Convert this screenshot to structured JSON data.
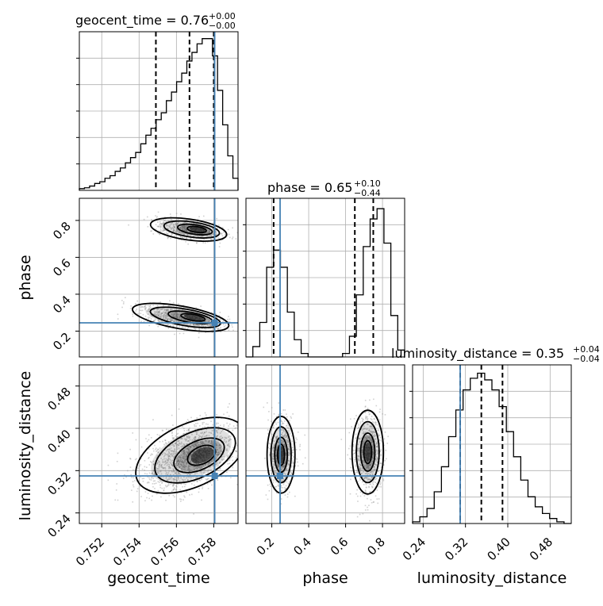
{
  "colors": {
    "truth": "#4682b4",
    "hist": "#000000",
    "grid": "#b0b0b0"
  },
  "titles": {
    "geocent": {
      "base": "geocent_time = 0.76",
      "sup": "+0.00",
      "sub": "−0.00"
    },
    "phase": {
      "base": "phase = 0.65",
      "sup": "+0.10",
      "sub": "−0.44"
    },
    "lumdist": {
      "base": "luminosity_distance = 0.35",
      "sup": "+0.04",
      "sub": "−0.04"
    }
  },
  "labels": {
    "x_geocent": "geocent_time",
    "x_phase": "phase",
    "x_lumdist": "luminosity_distance",
    "y_phase": "phase",
    "y_lumdist": "luminosity_distance"
  },
  "chart_data": {
    "type": "corner",
    "parameters": [
      "geocent_time",
      "phase",
      "luminosity_distance"
    ],
    "truths": {
      "geocent_time": 0.75805,
      "phase": 0.245,
      "luminosity_distance": 0.31
    },
    "quantile_lines": {
      "geocent_time": [
        0.7549,
        0.7567,
        0.758
      ],
      "phase": [
        0.21,
        0.65,
        0.75
      ],
      "luminosity_distance": [
        0.31,
        0.35,
        0.39
      ]
    },
    "ranges": {
      "geocent_time": [
        0.7508,
        0.7593
      ],
      "phase": [
        0.06,
        0.92
      ],
      "luminosity_distance": [
        0.22,
        0.52
      ]
    },
    "ticks": {
      "geocent_time": [
        "0.752",
        "0.754",
        "0.756",
        "0.758"
      ],
      "phase": [
        "0.2",
        "0.4",
        "0.6",
        "0.8"
      ],
      "luminosity_distance": [
        "0.24",
        "0.32",
        "0.40",
        "0.48"
      ]
    },
    "histograms": {
      "geocent_time": {
        "counts": [
          1,
          1.5,
          2.5,
          4,
          5,
          7,
          8.5,
          11,
          13,
          16,
          19,
          22,
          27,
          32,
          36,
          41,
          45,
          52,
          57,
          63,
          68,
          75,
          80,
          85,
          88,
          88,
          78,
          58,
          38,
          20,
          7
        ],
        "ymax": 92
      },
      "phase": {
        "counts": [
          0,
          3,
          10,
          26,
          31,
          26,
          13,
          5,
          1,
          0,
          0,
          0,
          0,
          0,
          1,
          6,
          18,
          32,
          40,
          43,
          33,
          12,
          2
        ],
        "ymax": 46
      },
      "luminosity_distance": {
        "counts": [
          1,
          4,
          9,
          19,
          34,
          52,
          68,
          80,
          87,
          90,
          86,
          80,
          70,
          55,
          40,
          26,
          16,
          10,
          6,
          3,
          1,
          0
        ],
        "ymax": 95
      }
    },
    "grid": true
  }
}
